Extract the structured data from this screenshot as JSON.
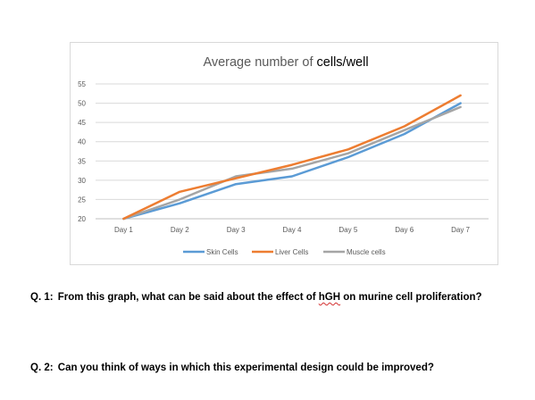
{
  "chart_data": {
    "type": "line",
    "title": "Average number of cells/well",
    "title_plain": "Average number of ",
    "title_bold": "cells/well",
    "xlabel": "",
    "ylabel": "",
    "categories": [
      "Day 1",
      "Day 2",
      "Day 3",
      "Day 4",
      "Day 5",
      "Day 6",
      "Day 7"
    ],
    "ylim": [
      20,
      55
    ],
    "yticks": [
      20,
      25,
      30,
      35,
      40,
      45,
      50,
      55
    ],
    "grid": true,
    "legend_position": "bottom",
    "series": [
      {
        "name": "Skin Cells",
        "color": "#5b9bd5",
        "values": [
          20,
          24,
          29,
          31,
          36,
          42,
          50
        ]
      },
      {
        "name": "Liver Cells",
        "color": "#ed7d31",
        "values": [
          20,
          27,
          30.5,
          34,
          38,
          44,
          52
        ]
      },
      {
        "name": "Muscle cells",
        "color": "#a5a5a5",
        "values": [
          20,
          25,
          31,
          33,
          37,
          43,
          49
        ]
      }
    ]
  },
  "questions": {
    "q1": {
      "label": "Q. 1:",
      "before": "From this graph, what can be said about the effect of ",
      "emphasis": "hGH",
      "after": " on murine cell proliferation?"
    },
    "q2": {
      "label": "Q. 2:",
      "text": "Can you think of ways in which this experimental design could be improved?"
    }
  }
}
